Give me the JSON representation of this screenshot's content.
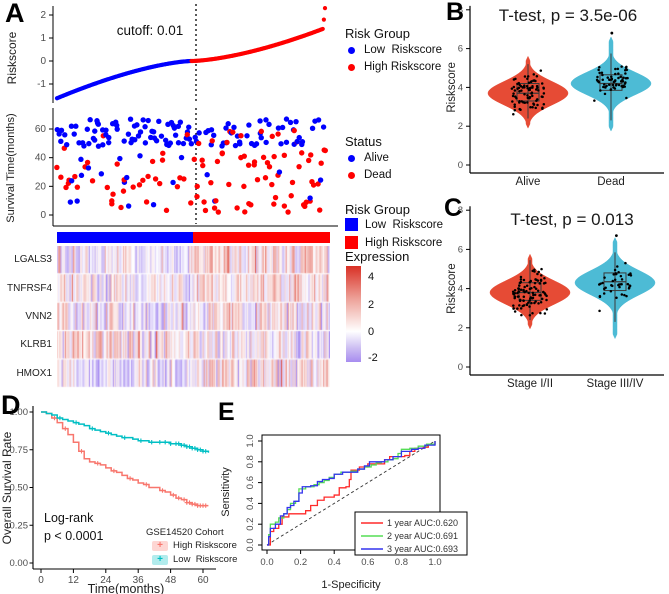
{
  "panels": {
    "a": "A",
    "b": "B",
    "c": "C",
    "d": "D",
    "e": "E"
  },
  "colors": {
    "low_risk_blue": "#0000FF",
    "high_risk_red": "#FF0000",
    "violin_red": "#E64B35",
    "violin_teal": "#4DBBD5",
    "km_high": "#F8766D",
    "km_low": "#00BFC4",
    "roc_red": "#FF2A2A",
    "roc_green": "#55DD55",
    "roc_blue": "#3333EE",
    "heat_high": "#DA372A",
    "heat_low": "#A78CF0"
  },
  "chart_data": [
    {
      "panel": "A",
      "name": "riskscore-rank-plot",
      "type": "scatter",
      "ylabel": "Riskscore",
      "yticks": [
        2,
        1,
        0,
        -1
      ],
      "cutoff_label": "cutoff: 0.01",
      "cutoff_value": 0.01,
      "n_samples": 240,
      "cutoff_index": 120,
      "riskscore_range": [
        -1.62,
        2.3
      ],
      "outliers": [
        1.8,
        2.3
      ],
      "curve_shape": {
        "low_min": -1.62,
        "low_exponent": 1.5,
        "high_max": 1.45,
        "high_exponent": 1.55
      },
      "legend_title": "Risk Group",
      "groups": [
        {
          "label": "Low  Riskscore",
          "color": "#0000FF"
        },
        {
          "label": "High Riskscore",
          "color": "#FF0000"
        }
      ]
    },
    {
      "panel": "A",
      "name": "survival-time-scatter",
      "type": "scatter",
      "ylabel": "Survival Time(months)",
      "yticks": [
        0,
        20,
        40,
        60
      ],
      "n_samples": 240,
      "legend_title": "Status",
      "groups": [
        {
          "label": "Alive",
          "color": "#0000FF"
        },
        {
          "label": "Dead",
          "color": "#FF0000"
        }
      ],
      "pattern": {
        "alive_prob_low_risk": 0.72,
        "alive_prob_high_risk": 0.45,
        "alive_followup_band_months": [
          48,
          67
        ],
        "dead_range_months": [
          2,
          62
        ]
      }
    },
    {
      "panel": "A",
      "name": "expression-heatmap",
      "type": "heatmap",
      "n_cols": 240,
      "col_group_split": 0.498,
      "rows": [
        {
          "gene": "LGALS3",
          "bias_low": -0.55,
          "bias_high": 0.55
        },
        {
          "gene": "TNFRSF4",
          "bias_low": -0.05,
          "bias_high": 0.3
        },
        {
          "gene": "VNN2",
          "bias_low": -0.3,
          "bias_high": 0.05
        },
        {
          "gene": "KLRB1",
          "bias_low": 0.4,
          "bias_high": -0.15
        },
        {
          "gene": "HMOX1",
          "bias_low": -0.5,
          "bias_high": 0.45
        }
      ],
      "annotation_legend": {
        "title": "Risk Group",
        "items": [
          {
            "label": "Low  Riskscore",
            "color": "#0000FF"
          },
          {
            "label": "High Riskscore",
            "color": "#FF0000"
          }
        ]
      },
      "expression_legend": {
        "title": "Expression",
        "ticks": [
          {
            "label": "4",
            "pos": 11
          },
          {
            "label": "2",
            "pos": 39
          },
          {
            "label": "0",
            "pos": 66
          },
          {
            "label": "-2",
            "pos": 92
          }
        ],
        "high_color": "#DA372A",
        "mid_color": "#FFFFFF",
        "low_color": "#A78CF0"
      }
    },
    {
      "panel": "B",
      "name": "riskscore-by-status-violin",
      "type": "violin",
      "title": "T-test, p = 3.5e-06",
      "ylabel": "Riskscore",
      "yticks": [
        0,
        2,
        4,
        6,
        8
      ],
      "categories": [
        "Alive",
        "Dead"
      ],
      "groups": [
        {
          "label": "Alive",
          "color": "#E64B35",
          "center": 3.7,
          "sigma": 0.6,
          "min": 1.9,
          "max": 5.6,
          "box": {
            "whisker_low": 2.4,
            "q1": 3.3,
            "median": 3.7,
            "q3": 4.2,
            "whisker_high": 5.2
          },
          "n_points": 85,
          "extra_points": []
        },
        {
          "label": "Dead",
          "color": "#4DBBD5",
          "center": 4.2,
          "sigma": 0.58,
          "min": 1.75,
          "max": 6.6,
          "box": {
            "whisker_low": 2.3,
            "q1": 3.85,
            "median": 4.2,
            "q3": 4.65,
            "whisker_high": 5.75
          },
          "n_points": 65,
          "extra_points": [
            6.8
          ]
        }
      ]
    },
    {
      "panel": "C",
      "name": "riskscore-by-stage-violin",
      "type": "violin",
      "title": "T-test, p = 0.013",
      "ylabel": "Riskscore",
      "yticks": [
        0,
        2,
        4,
        6,
        8
      ],
      "categories": [
        "Stage I/II",
        "Stage III/IV"
      ],
      "groups": [
        {
          "label": "Stage I/II",
          "color": "#E64B35",
          "center": 3.8,
          "sigma": 0.6,
          "min": 1.95,
          "max": 5.75,
          "box": {
            "whisker_low": 2.4,
            "q1": 3.4,
            "median": 3.8,
            "q3": 4.3,
            "whisker_high": 5.45
          },
          "n_points": 100,
          "extra_points": []
        },
        {
          "label": "Stage III/IV",
          "color": "#4DBBD5",
          "center": 4.3,
          "sigma": 0.62,
          "min": 1.45,
          "max": 6.6,
          "box": {
            "whisker_low": 2.3,
            "q1": 3.9,
            "median": 4.35,
            "q3": 4.8,
            "whisker_high": 5.85
          },
          "n_points": 42,
          "extra_points": [
            6.7
          ]
        }
      ]
    },
    {
      "panel": "D",
      "name": "kaplan-meier-overall-survival",
      "type": "line",
      "ylabel": "Overall Survival Rate",
      "xlabel": "Time(months)",
      "xticks": [
        0,
        12,
        24,
        36,
        48,
        60
      ],
      "yticks": [
        "0.00",
        "0.25",
        "0.50",
        "0.75",
        "1.00"
      ],
      "annotation": {
        "line1": "Log-rank",
        "line2": "p < 0.0001"
      },
      "legend": {
        "title": "GSE14520 Cohort",
        "items": [
          {
            "label": "High Riskscore",
            "color": "#F8766D"
          },
          {
            "label": "Low  Riskscore",
            "color": "#00BFC4"
          }
        ]
      },
      "series": [
        {
          "name": "High Riskscore",
          "color": "#F8766D",
          "points": [
            [
              0,
              1
            ],
            [
              2,
              0.99
            ],
            [
              4,
              0.96
            ],
            [
              6,
              0.93
            ],
            [
              8,
              0.89
            ],
            [
              10,
              0.85
            ],
            [
              12,
              0.8
            ],
            [
              14,
              0.74
            ],
            [
              16,
              0.69
            ],
            [
              18,
              0.67
            ],
            [
              20,
              0.66
            ],
            [
              22,
              0.65
            ],
            [
              24,
              0.63
            ],
            [
              26,
              0.61
            ],
            [
              28,
              0.6
            ],
            [
              30,
              0.58
            ],
            [
              32,
              0.56
            ],
            [
              34,
              0.55
            ],
            [
              36,
              0.53
            ],
            [
              38,
              0.52
            ],
            [
              40,
              0.5
            ],
            [
              42,
              0.5
            ],
            [
              44,
              0.48
            ],
            [
              46,
              0.47
            ],
            [
              48,
              0.45
            ],
            [
              50,
              0.43
            ],
            [
              52,
              0.42
            ],
            [
              54,
              0.4
            ],
            [
              56,
              0.39
            ],
            [
              58,
              0.38
            ],
            [
              62,
              0.38
            ]
          ],
          "censor_times": [
            5,
            9,
            15,
            21,
            27,
            33,
            39,
            45,
            49,
            51,
            53,
            54,
            55,
            56,
            57,
            58,
            59,
            60,
            61
          ]
        },
        {
          "name": "Low Riskscore",
          "color": "#00BFC4",
          "points": [
            [
              0,
              1
            ],
            [
              2,
              0.99
            ],
            [
              4,
              0.98
            ],
            [
              6,
              0.96
            ],
            [
              8,
              0.95
            ],
            [
              10,
              0.94
            ],
            [
              12,
              0.93
            ],
            [
              14,
              0.92
            ],
            [
              16,
              0.91
            ],
            [
              18,
              0.89
            ],
            [
              20,
              0.88
            ],
            [
              22,
              0.87
            ],
            [
              24,
              0.86
            ],
            [
              26,
              0.85
            ],
            [
              28,
              0.84
            ],
            [
              30,
              0.83
            ],
            [
              34,
              0.82
            ],
            [
              36,
              0.81
            ],
            [
              40,
              0.8
            ],
            [
              44,
              0.8
            ],
            [
              48,
              0.79
            ],
            [
              52,
              0.78
            ],
            [
              54,
              0.77
            ],
            [
              56,
              0.76
            ],
            [
              58,
              0.75
            ],
            [
              60,
              0.74
            ],
            [
              62,
              0.73
            ]
          ],
          "censor_times": [
            7,
            13,
            19,
            25,
            31,
            37,
            41,
            44,
            46,
            48,
            50,
            51,
            52,
            53,
            54,
            55,
            56,
            57,
            58,
            59,
            60,
            61
          ]
        }
      ]
    },
    {
      "panel": "E",
      "name": "roc-curves",
      "type": "line",
      "ylabel": "Sensitivity",
      "xlabel": "1-Specificity",
      "xticks": [
        "0.0",
        "0.2",
        "0.4",
        "0.6",
        "0.8",
        "1.0"
      ],
      "yticks": [
        "0.0",
        "0.2",
        "0.4",
        "0.6",
        "0.8",
        "1.0"
      ],
      "diagonal": true,
      "series": [
        {
          "name": "1 year AUC:0.620",
          "auc": 0.62,
          "color": "#FF2A2A",
          "points": [
            [
              0,
              0
            ],
            [
              0.02,
              0.13
            ],
            [
              0.04,
              0.16
            ],
            [
              0.07,
              0.2
            ],
            [
              0.09,
              0.27
            ],
            [
              0.13,
              0.3
            ],
            [
              0.2,
              0.3
            ],
            [
              0.23,
              0.33
            ],
            [
              0.26,
              0.38
            ],
            [
              0.3,
              0.43
            ],
            [
              0.34,
              0.46
            ],
            [
              0.4,
              0.48
            ],
            [
              0.43,
              0.55
            ],
            [
              0.47,
              0.56
            ],
            [
              0.49,
              0.63
            ],
            [
              0.5,
              0.72
            ],
            [
              0.55,
              0.75
            ],
            [
              0.6,
              0.78
            ],
            [
              0.68,
              0.78
            ],
            [
              0.7,
              0.82
            ],
            [
              0.73,
              0.85
            ],
            [
              0.82,
              0.86
            ],
            [
              0.85,
              0.9
            ],
            [
              0.88,
              0.93
            ],
            [
              0.93,
              0.94
            ],
            [
              0.96,
              0.97
            ],
            [
              1,
              1
            ]
          ]
        },
        {
          "name": "2 year AUC:0.691",
          "auc": 0.691,
          "color": "#55DD55",
          "points": [
            [
              0,
              0
            ],
            [
              0.01,
              0.1
            ],
            [
              0.02,
              0.2
            ],
            [
              0.05,
              0.22
            ],
            [
              0.07,
              0.26
            ],
            [
              0.1,
              0.3
            ],
            [
              0.12,
              0.34
            ],
            [
              0.14,
              0.4
            ],
            [
              0.17,
              0.42
            ],
            [
              0.19,
              0.54
            ],
            [
              0.23,
              0.56
            ],
            [
              0.28,
              0.58
            ],
            [
              0.31,
              0.6
            ],
            [
              0.34,
              0.62
            ],
            [
              0.37,
              0.65
            ],
            [
              0.4,
              0.68
            ],
            [
              0.44,
              0.7
            ],
            [
              0.5,
              0.71
            ],
            [
              0.54,
              0.73
            ],
            [
              0.58,
              0.75
            ],
            [
              0.62,
              0.77
            ],
            [
              0.65,
              0.79
            ],
            [
              0.68,
              0.8
            ],
            [
              0.72,
              0.82
            ],
            [
              0.75,
              0.83
            ],
            [
              0.78,
              0.88
            ],
            [
              0.8,
              0.92
            ],
            [
              0.85,
              0.93
            ],
            [
              0.9,
              0.95
            ],
            [
              0.95,
              0.97
            ],
            [
              1,
              1
            ]
          ]
        },
        {
          "name": "3 year AUC:0.693",
          "auc": 0.693,
          "color": "#3333EE",
          "points": [
            [
              0,
              0
            ],
            [
              0.01,
              0.08
            ],
            [
              0.02,
              0.16
            ],
            [
              0.05,
              0.2
            ],
            [
              0.08,
              0.28
            ],
            [
              0.1,
              0.3
            ],
            [
              0.12,
              0.36
            ],
            [
              0.14,
              0.38
            ],
            [
              0.16,
              0.42
            ],
            [
              0.19,
              0.5
            ],
            [
              0.21,
              0.56
            ],
            [
              0.26,
              0.57
            ],
            [
              0.3,
              0.61
            ],
            [
              0.33,
              0.63
            ],
            [
              0.37,
              0.64
            ],
            [
              0.4,
              0.68
            ],
            [
              0.45,
              0.7
            ],
            [
              0.5,
              0.7
            ],
            [
              0.54,
              0.73
            ],
            [
              0.58,
              0.76
            ],
            [
              0.61,
              0.8
            ],
            [
              0.67,
              0.8
            ],
            [
              0.7,
              0.82
            ],
            [
              0.75,
              0.85
            ],
            [
              0.8,
              0.9
            ],
            [
              0.86,
              0.92
            ],
            [
              0.9,
              0.93
            ],
            [
              0.94,
              0.96
            ],
            [
              1,
              1
            ]
          ]
        }
      ]
    }
  ]
}
